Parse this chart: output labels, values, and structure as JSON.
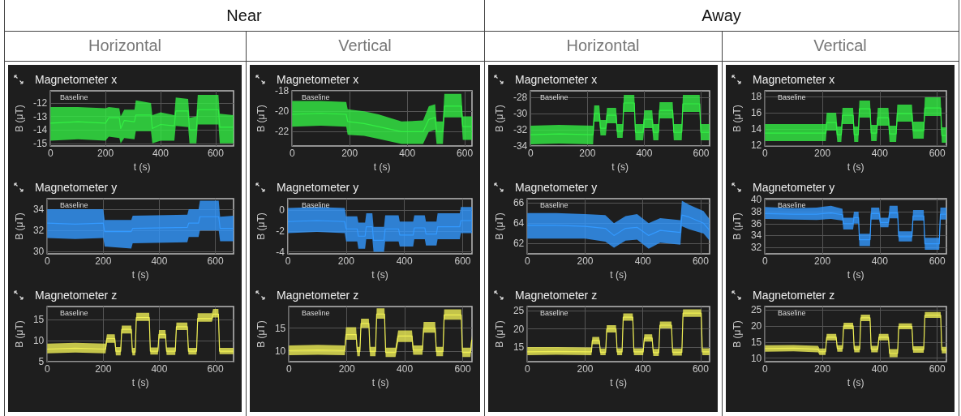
{
  "chart_data": [
    {
      "type": "line",
      "title": "Magnetometer x",
      "xlabel": "t (s)",
      "ylabel": "B (μT)",
      "marker": "none",
      "grid": true,
      "xlim": [
        0,
        665
      ],
      "ylim": [
        -15.2,
        -11.1
      ],
      "xticks": [
        0,
        200,
        400,
        600
      ],
      "yticks": [
        -15,
        -14,
        -13,
        -12
      ],
      "annotations": [
        "Near",
        "Horizontal",
        "Baseline"
      ],
      "x": [
        0,
        100,
        200,
        212,
        250,
        255,
        268,
        305,
        310,
        365,
        370,
        400,
        450,
        455,
        500,
        505,
        530,
        535,
        610,
        615,
        665
      ],
      "series": [
        {
          "color": "#33ee44",
          "values": [
            -13.5,
            -13.4,
            -13.5,
            -13.1,
            -13.1,
            -13.9,
            -13.3,
            -13.4,
            -12.9,
            -12.9,
            -13.9,
            -13.6,
            -13.7,
            -12.6,
            -12.6,
            -14.0,
            -14.0,
            -12.5,
            -12.5,
            -13.8,
            -13.8
          ],
          "lower": [
            -14.8,
            -14.7,
            -14.8,
            -14.5,
            -14.6,
            -15.0,
            -14.6,
            -14.7,
            -14.1,
            -14.1,
            -15.0,
            -14.8,
            -14.8,
            -13.7,
            -13.8,
            -15.0,
            -15.0,
            -13.6,
            -13.6,
            -15.0,
            -15.0
          ],
          "upper": [
            -12.3,
            -12.3,
            -12.4,
            -12.3,
            -12.4,
            -13.0,
            -12.5,
            -12.5,
            -11.8,
            -12.0,
            -12.9,
            -12.7,
            -12.9,
            -11.6,
            -11.7,
            -13.1,
            -13.0,
            -11.4,
            -11.4,
            -12.8,
            -12.9
          ]
        }
      ]
    },
    {
      "type": "line",
      "title": "Magnetometer y",
      "xlabel": "t (s)",
      "ylabel": "B (μT)",
      "marker": "none",
      "grid": true,
      "xlim": [
        0,
        665
      ],
      "ylim": [
        29.8,
        35
      ],
      "xticks": [
        0,
        200,
        400,
        600
      ],
      "yticks": [
        30,
        32,
        34
      ],
      "annotations": [
        "Baseline"
      ],
      "x": [
        0,
        100,
        200,
        205,
        300,
        305,
        500,
        505,
        540,
        545,
        612,
        617,
        665
      ],
      "series": [
        {
          "color": "#3399ff",
          "values": [
            32.7,
            32.6,
            32.7,
            31.9,
            31.9,
            32.2,
            32.3,
            32.7,
            32.7,
            33.3,
            33.3,
            32.2,
            32.2
          ],
          "lower": [
            31.3,
            31.2,
            31.3,
            30.5,
            30.3,
            30.8,
            30.9,
            31.4,
            31.4,
            32.0,
            32.0,
            31.0,
            31.0
          ],
          "upper": [
            34.0,
            34.0,
            34.0,
            33.0,
            33.0,
            33.4,
            33.5,
            34.0,
            34.0,
            34.8,
            34.8,
            33.3,
            33.4
          ]
        }
      ]
    },
    {
      "type": "line",
      "title": "Magnetometer z",
      "xlabel": "t (s)",
      "ylabel": "B (μT)",
      "marker": "none",
      "grid": true,
      "xlim": [
        0,
        665
      ],
      "ylim": [
        5,
        18.1
      ],
      "xticks": [
        0,
        200,
        400,
        600
      ],
      "yticks": [
        5,
        10,
        15
      ],
      "annotations": [
        "Baseline"
      ],
      "x": [
        0,
        100,
        208,
        213,
        241,
        245,
        262,
        266,
        300,
        304,
        314,
        318,
        364,
        368,
        395,
        399,
        422,
        426,
        457,
        461,
        500,
        504,
        533,
        537,
        588,
        592,
        611,
        615,
        665
      ],
      "series": [
        {
          "color": "#eeee55",
          "values": [
            8,
            8.2,
            8,
            10.5,
            10.5,
            7.5,
            7.5,
            12.7,
            12.7,
            7.3,
            7.3,
            15.5,
            15.5,
            7.5,
            7.5,
            11.5,
            11.5,
            7.5,
            7.5,
            13.3,
            13.3,
            7.5,
            7.5,
            15.3,
            15.3,
            16.3,
            16.3,
            7.5,
            7.5
          ],
          "lower": [
            7,
            7.2,
            7,
            9.5,
            9.5,
            6.5,
            6.5,
            11.7,
            11.7,
            6.5,
            6.5,
            14.7,
            14.7,
            6.7,
            6.7,
            10.5,
            10.5,
            6.6,
            6.6,
            12.5,
            12.5,
            6.7,
            6.7,
            14.5,
            14.5,
            15.5,
            15.5,
            6.8,
            6.8
          ],
          "upper": [
            9.3,
            9.5,
            9.3,
            11.5,
            11.5,
            8.5,
            8.5,
            13.6,
            13.6,
            8.3,
            8.3,
            16.6,
            16.6,
            8.4,
            8.4,
            12.5,
            12.5,
            8.4,
            8.4,
            14.3,
            14.3,
            8.3,
            8.3,
            16.5,
            16.5,
            17.5,
            17.5,
            8.3,
            8.3
          ]
        }
      ]
    },
    {
      "type": "line",
      "title": "Magnetometer x",
      "xlabel": "t (s)",
      "ylabel": "B (μT)",
      "marker": "none",
      "grid": true,
      "xlim": [
        0,
        625
      ],
      "ylim": [
        -23.4,
        -18
      ],
      "xticks": [
        0,
        200,
        400,
        600
      ],
      "yticks": [
        -22,
        -20,
        -18
      ],
      "annotations": [
        "Vertical",
        "Baseline"
      ],
      "x": [
        0,
        100,
        188,
        193,
        250,
        300,
        380,
        455,
        475,
        497,
        502,
        524,
        529,
        588,
        593,
        625
      ],
      "series": [
        {
          "color": "#33ee44",
          "values": [
            -20.3,
            -20.2,
            -20.3,
            -21.0,
            -21.2,
            -21.5,
            -22.0,
            -22.0,
            -20.8,
            -20.6,
            -22.0,
            -22.0,
            -19.5,
            -19.5,
            -21.5,
            -21.5
          ],
          "lower": [
            -21.5,
            -21.4,
            -21.5,
            -22.3,
            -22.4,
            -22.7,
            -23.2,
            -23.2,
            -22.0,
            -21.8,
            -23.2,
            -23.2,
            -20.6,
            -20.6,
            -22.8,
            -22.8
          ],
          "upper": [
            -19.0,
            -19.0,
            -19.1,
            -19.8,
            -20.0,
            -20.3,
            -21.0,
            -20.9,
            -19.5,
            -19.3,
            -21.0,
            -21.0,
            -18.3,
            -18.3,
            -20.5,
            -20.5
          ]
        }
      ]
    },
    {
      "type": "line",
      "title": "Magnetometer y",
      "xlabel": "t (s)",
      "ylabel": "B (μT)",
      "marker": "none",
      "grid": true,
      "xlim": [
        0,
        632
      ],
      "ylim": [
        -4.2,
        1.1
      ],
      "xticks": [
        0,
        200,
        400,
        600
      ],
      "yticks": [
        -4,
        -2,
        0
      ],
      "annotations": [
        "Baseline"
      ],
      "x": [
        0,
        100,
        195,
        200,
        238,
        242,
        265,
        269,
        290,
        294,
        330,
        334,
        380,
        384,
        430,
        434,
        470,
        474,
        510,
        514,
        590,
        594,
        632
      ],
      "series": [
        {
          "color": "#3399ff",
          "values": [
            -1.1,
            -1.0,
            -1.1,
            -1.8,
            -1.8,
            -2.5,
            -2.5,
            -1.6,
            -1.6,
            -2.9,
            -2.9,
            -1.8,
            -1.8,
            -2.4,
            -2.4,
            -1.7,
            -1.7,
            -2.3,
            -2.3,
            -1.6,
            -1.6,
            -1.0,
            -1.0
          ],
          "lower": [
            -2.2,
            -2.1,
            -2.2,
            -3.0,
            -3.0,
            -3.7,
            -3.7,
            -2.8,
            -2.8,
            -4.0,
            -4.0,
            -3.0,
            -3.0,
            -3.5,
            -3.5,
            -2.8,
            -2.8,
            -3.4,
            -3.4,
            -2.8,
            -2.8,
            -2.2,
            -2.2
          ],
          "upper": [
            0.2,
            0.3,
            0.2,
            -0.6,
            -0.6,
            -1.2,
            -1.2,
            -0.3,
            -0.3,
            -1.6,
            -1.6,
            -0.5,
            -0.5,
            -1.1,
            -1.1,
            -0.5,
            -0.5,
            -1.1,
            -1.1,
            -0.3,
            -0.3,
            0.3,
            0.3
          ]
        }
      ]
    },
    {
      "type": "line",
      "title": "Magnetometer z",
      "xlabel": "t (s)",
      "ylabel": "B (μT)",
      "marker": "none",
      "grid": true,
      "xlim": [
        0,
        632
      ],
      "ylim": [
        7.8,
        19.6
      ],
      "xticks": [
        0,
        200,
        400,
        600
      ],
      "yticks": [
        10,
        15
      ],
      "annotations": [
        "Baseline"
      ],
      "x": [
        0,
        100,
        193,
        197,
        232,
        236,
        245,
        249,
        276,
        280,
        299,
        303,
        330,
        334,
        368,
        377,
        425,
        429,
        461,
        465,
        505,
        509,
        532,
        536,
        595,
        599,
        627,
        631
      ],
      "series": [
        {
          "color": "#eeee55",
          "values": [
            10.2,
            10.3,
            10.2,
            13.6,
            13.6,
            10,
            10,
            16,
            16,
            10,
            10,
            18,
            18,
            9.8,
            9.8,
            13.3,
            13.3,
            10.3,
            10.3,
            15,
            15,
            10,
            10,
            17.8,
            17.8,
            9.8,
            9.8,
            12.5
          ],
          "lower": [
            9.2,
            9.3,
            9.2,
            12.5,
            12.5,
            9,
            9,
            15,
            15,
            9,
            9,
            17,
            17,
            8.8,
            8.8,
            12,
            12,
            9.3,
            9.3,
            14,
            14,
            9,
            9,
            16.8,
            16.8,
            8.8,
            8.8,
            11.5
          ],
          "upper": [
            11.3,
            11.4,
            11.3,
            15.2,
            15.2,
            11,
            11,
            17,
            17,
            11,
            11,
            19.2,
            19.2,
            10.8,
            10.8,
            14.5,
            14.5,
            11.3,
            11.3,
            16.3,
            16.3,
            11,
            11,
            19,
            19,
            10.8,
            10.8,
            13.5
          ]
        }
      ]
    },
    {
      "type": "line",
      "title": "Magnetometer x",
      "xlabel": "t (s)",
      "ylabel": "B (μT)",
      "marker": "none",
      "grid": true,
      "xlim": [
        0,
        630
      ],
      "ylim": [
        -34,
        -27.2
      ],
      "xticks": [
        0,
        200,
        400,
        600
      ],
      "yticks": [
        -34,
        -32,
        -30,
        -28
      ],
      "annotations": [
        "Away",
        "Horizontal",
        "Baseline"
      ],
      "x": [
        0,
        100,
        220,
        224,
        242,
        246,
        265,
        269,
        301,
        305,
        324,
        328,
        365,
        369,
        396,
        400,
        428,
        432,
        450,
        454,
        500,
        504,
        532,
        536,
        595,
        599,
        630
      ],
      "series": [
        {
          "color": "#33ee44",
          "values": [
            -32.6,
            -32.5,
            -32.6,
            -30,
            -30,
            -31.8,
            -31.8,
            -30.2,
            -30.2,
            -32.2,
            -32.2,
            -28.7,
            -28.7,
            -32.3,
            -32.3,
            -30.7,
            -30.7,
            -32.3,
            -32.3,
            -29.6,
            -29.6,
            -32.3,
            -32.3,
            -28.8,
            -28.8,
            -32.3,
            -32.3
          ],
          "lower": [
            -33.8,
            -33.7,
            -33.8,
            -31,
            -31,
            -32.7,
            -32.7,
            -31.2,
            -31.2,
            -33,
            -33,
            -29.8,
            -29.8,
            -33.3,
            -33.3,
            -31.8,
            -31.8,
            -33.3,
            -33.3,
            -30.6,
            -30.6,
            -33.3,
            -33.3,
            -29.8,
            -29.8,
            -33.3,
            -33.3
          ],
          "upper": [
            -31.5,
            -31.4,
            -31.5,
            -29,
            -29,
            -30.8,
            -30.8,
            -29.3,
            -29.3,
            -31.3,
            -31.3,
            -27.7,
            -27.7,
            -31.3,
            -31.3,
            -29.6,
            -29.6,
            -31.3,
            -31.3,
            -28.6,
            -28.6,
            -31.3,
            -31.3,
            -27.7,
            -27.7,
            -31.3,
            -31.3
          ]
        }
      ]
    },
    {
      "type": "line",
      "title": "Magnetometer y",
      "xlabel": "t (s)",
      "ylabel": "B (μT)",
      "marker": "none",
      "grid": true,
      "xlim": [
        0,
        631
      ],
      "ylim": [
        61,
        66.4
      ],
      "xticks": [
        0,
        200,
        400,
        600
      ],
      "yticks": [
        62,
        64,
        66
      ],
      "annotations": [
        "Baseline"
      ],
      "x": [
        0,
        100,
        200,
        270,
        300,
        340,
        380,
        420,
        460,
        530,
        535,
        560,
        610,
        631
      ],
      "series": [
        {
          "color": "#3399ff",
          "values": [
            63.8,
            63.8,
            63.7,
            63.5,
            62.8,
            63.5,
            63.6,
            62.8,
            63.3,
            63.1,
            64.8,
            64.6,
            64.0,
            63.3
          ],
          "lower": [
            62.5,
            62.5,
            62.5,
            62.2,
            61.6,
            62.3,
            62.4,
            61.5,
            62.1,
            61.9,
            63.7,
            63.4,
            63.0,
            62.3
          ],
          "upper": [
            65.0,
            65.0,
            64.9,
            64.8,
            64.0,
            64.7,
            64.9,
            64.0,
            64.5,
            64.3,
            66.2,
            65.8,
            65.2,
            64.4
          ]
        }
      ]
    },
    {
      "type": "line",
      "title": "Magnetometer z",
      "xlabel": "t (s)",
      "ylabel": "B (μT)",
      "marker": "none",
      "grid": true,
      "xlim": [
        0,
        631
      ],
      "ylim": [
        11,
        26.1
      ],
      "xticks": [
        0,
        200,
        400,
        600
      ],
      "yticks": [
        15,
        20,
        25
      ],
      "annotations": [
        "Baseline"
      ],
      "x": [
        0,
        100,
        222,
        225,
        249,
        253,
        271,
        275,
        307,
        311,
        328,
        332,
        365,
        369,
        401,
        405,
        432,
        436,
        455,
        459,
        499,
        503,
        535,
        539,
        602,
        606,
        631
      ],
      "series": [
        {
          "color": "#eeee55",
          "values": [
            13.7,
            13.8,
            13.7,
            16.8,
            16.8,
            13.6,
            13.6,
            20,
            20,
            13.7,
            13.7,
            23.2,
            23.2,
            13.7,
            13.7,
            17.5,
            17.5,
            13.5,
            13.5,
            21,
            21,
            13.6,
            13.6,
            24.3,
            24.3,
            13.7,
            13.7
          ],
          "lower": [
            12.8,
            12.9,
            12.8,
            15.8,
            15.8,
            12.8,
            12.8,
            19,
            19,
            12.8,
            12.8,
            22.2,
            22.2,
            12.8,
            12.8,
            16.5,
            16.5,
            12.6,
            12.6,
            20.1,
            20.1,
            12.7,
            12.7,
            23.3,
            23.3,
            12.8,
            12.8
          ],
          "upper": [
            15,
            15,
            14.9,
            17.8,
            17.8,
            14.6,
            14.6,
            21,
            21,
            14.7,
            14.7,
            24.2,
            24.2,
            14.7,
            14.7,
            18.5,
            18.5,
            14.5,
            14.5,
            22,
            22,
            14.6,
            14.6,
            25.3,
            25.3,
            14.7,
            14.7
          ]
        }
      ]
    },
    {
      "type": "line",
      "title": "Magnetometer x",
      "xlabel": "t (s)",
      "ylabel": "B (μT)",
      "marker": "none",
      "grid": true,
      "xlim": [
        0,
        632
      ],
      "ylim": [
        11.9,
        18.7
      ],
      "xticks": [
        0,
        200,
        400,
        600
      ],
      "yticks": [
        12,
        14,
        16,
        18
      ],
      "annotations": [
        "Vertical",
        "Baseline"
      ],
      "x": [
        0,
        100,
        212,
        215,
        248,
        252,
        266,
        270,
        307,
        311,
        325,
        329,
        366,
        370,
        389,
        393,
        430,
        434,
        457,
        461,
        512,
        516,
        553,
        557,
        612,
        616,
        632
      ],
      "series": [
        {
          "color": "#33ee44",
          "values": [
            13.5,
            13.5,
            13.5,
            14.8,
            14.8,
            13.3,
            13.3,
            15.7,
            15.7,
            13.3,
            13.3,
            16.5,
            16.5,
            13.5,
            13.5,
            15.4,
            15.4,
            13.4,
            13.4,
            15.9,
            15.9,
            13.8,
            13.8,
            16.6,
            16.6,
            13.2,
            13.2
          ],
          "lower": [
            12.5,
            12.5,
            12.5,
            13.8,
            13.8,
            12.4,
            12.4,
            14.6,
            14.6,
            12.4,
            12.4,
            15.4,
            15.4,
            12.5,
            12.5,
            14.4,
            14.4,
            12.4,
            12.4,
            14.9,
            14.9,
            12.8,
            12.8,
            15.6,
            15.6,
            12.3,
            12.3
          ],
          "upper": [
            14.6,
            14.6,
            14.6,
            16.0,
            16.0,
            14.3,
            14.3,
            16.6,
            16.6,
            14.3,
            14.3,
            17.5,
            17.5,
            14.5,
            14.5,
            16.6,
            16.6,
            14.4,
            14.4,
            17.0,
            17.0,
            14.9,
            14.9,
            17.9,
            17.9,
            14.2,
            14.2
          ]
        }
      ]
    },
    {
      "type": "line",
      "title": "Magnetometer y",
      "xlabel": "t (s)",
      "ylabel": "B (μT)",
      "marker": "none",
      "grid": true,
      "xlim": [
        0,
        632
      ],
      "ylim": [
        30.9,
        40.2
      ],
      "xticks": [
        0,
        200,
        400,
        600
      ],
      "yticks": [
        32,
        34,
        36,
        38,
        40
      ],
      "annotations": [
        "Baseline"
      ],
      "x": [
        0,
        100,
        180,
        230,
        270,
        273,
        307,
        310,
        326,
        329,
        366,
        370,
        398,
        402,
        430,
        434,
        462,
        466,
        512,
        516,
        553,
        557,
        607,
        611,
        632
      ],
      "series": [
        {
          "color": "#3399ff",
          "values": [
            37.7,
            37.6,
            37.6,
            37.8,
            37.5,
            36,
            36,
            37,
            37,
            33.3,
            33.3,
            37.7,
            37.7,
            36.2,
            36.2,
            37.8,
            37.8,
            33.8,
            33.8,
            37.3,
            37.3,
            32.6,
            32.6,
            37.6,
            37.6
          ],
          "lower": [
            36.8,
            36.7,
            36.6,
            36.8,
            36.5,
            35,
            35,
            36,
            36,
            32.2,
            32.2,
            36.7,
            36.7,
            35.4,
            35.4,
            36.9,
            36.9,
            33,
            33,
            36.5,
            36.5,
            31.6,
            31.6,
            36.7,
            36.7
          ],
          "upper": [
            38.8,
            38.6,
            38.7,
            39,
            38.5,
            37,
            37,
            38,
            38,
            34.3,
            34.3,
            38.7,
            38.7,
            37,
            37,
            39,
            39,
            34.7,
            34.7,
            38.3,
            38.3,
            33.6,
            33.6,
            38.7,
            38.7
          ]
        }
      ]
    },
    {
      "type": "line",
      "title": "Magnetometer z",
      "xlabel": "t (s)",
      "ylabel": "B (μT)",
      "marker": "none",
      "grid": true,
      "xlim": [
        0,
        632
      ],
      "ylim": [
        8.9,
        26
      ],
      "xticks": [
        0,
        200,
        400,
        600
      ],
      "yticks": [
        10,
        15,
        20,
        25
      ],
      "annotations": [
        "Baseline"
      ],
      "x": [
        0,
        100,
        185,
        190,
        211,
        215,
        248,
        252,
        270,
        274,
        307,
        311,
        330,
        334,
        366,
        370,
        393,
        397,
        430,
        434,
        462,
        466,
        512,
        516,
        553,
        557,
        612,
        616,
        632
      ],
      "series": [
        {
          "color": "#eeee55",
          "values": [
            13,
            13.1,
            12.8,
            12,
            12,
            16.5,
            16.5,
            13,
            13,
            20,
            20,
            12.8,
            12.8,
            22.5,
            22.5,
            12.8,
            12.8,
            16.5,
            16.5,
            11.5,
            11.5,
            19.8,
            19.8,
            12.7,
            12.7,
            23.3,
            23.3,
            12.5,
            12.5
          ],
          "lower": [
            12,
            12.1,
            11.8,
            11,
            11,
            15.5,
            15.5,
            12,
            12,
            19,
            19,
            11.8,
            11.8,
            21.5,
            21.5,
            11.8,
            11.8,
            15.5,
            15.5,
            10.3,
            10.3,
            19,
            19,
            11.7,
            11.7,
            22.5,
            22.5,
            11.5,
            11.5
          ],
          "upper": [
            14,
            14.1,
            13.8,
            13,
            13,
            17.5,
            17.5,
            14,
            14,
            21,
            21,
            13.8,
            13.8,
            23.5,
            23.5,
            13.8,
            13.8,
            17.5,
            17.5,
            12.8,
            12.8,
            20.8,
            20.8,
            13.7,
            13.7,
            24.3,
            24.3,
            13.5,
            13.5
          ]
        }
      ]
    }
  ]
}
